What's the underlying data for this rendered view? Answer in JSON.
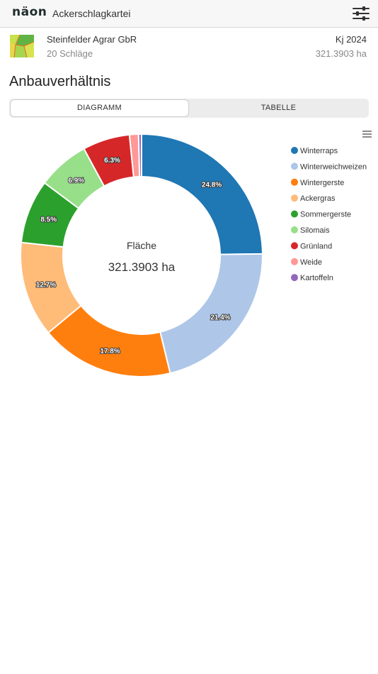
{
  "app": {
    "logo_text": "näon",
    "title": "Ackerschlagkartei"
  },
  "header": {
    "menu_icon": "settings-sliders-icon"
  },
  "farm": {
    "name": "Steinfelder Agrar GbR",
    "fields_count": "20 Schläge",
    "year": "Kj 2024",
    "total_area": "321.3903 ha",
    "logo_icon": "farm-fields-icon"
  },
  "section": {
    "title": "Anbauverhältnis"
  },
  "view_toggle": {
    "tabs": [
      {
        "label": "DIAGRAMM",
        "active": true
      },
      {
        "label": "TABELLE",
        "active": false
      }
    ]
  },
  "chart_menu_icon": "hamburger-menu-icon",
  "chart_data": {
    "type": "pie",
    "style": "donut",
    "center_label": "Fläche",
    "center_value": "321.3903 ha",
    "legend_position": "right",
    "series": [
      {
        "name": "Winterraps",
        "value": 24.8,
        "label": "24.8%",
        "color": "#1f77b4"
      },
      {
        "name": "Winterweichweizen",
        "value": 21.4,
        "label": "21.4%",
        "color": "#aec7e8"
      },
      {
        "name": "Wintergerste",
        "value": 17.8,
        "label": "17.8%",
        "color": "#ff7f0e"
      },
      {
        "name": "Ackergras",
        "value": 12.7,
        "label": "12.7%",
        "color": "#ffbb78"
      },
      {
        "name": "Sommergerste",
        "value": 8.5,
        "label": "8.5%",
        "color": "#2ca02c"
      },
      {
        "name": "Silomais",
        "value": 6.9,
        "label": "6.9%",
        "color": "#98df8a"
      },
      {
        "name": "Grünland",
        "value": 6.3,
        "label": "6.3%",
        "color": "#d62728"
      },
      {
        "name": "Weide",
        "value": 1.2,
        "label": "",
        "color": "#ff9896"
      },
      {
        "name": "Kartoffeln",
        "value": 0.4,
        "label": "",
        "color": "#9467bd"
      }
    ]
  }
}
